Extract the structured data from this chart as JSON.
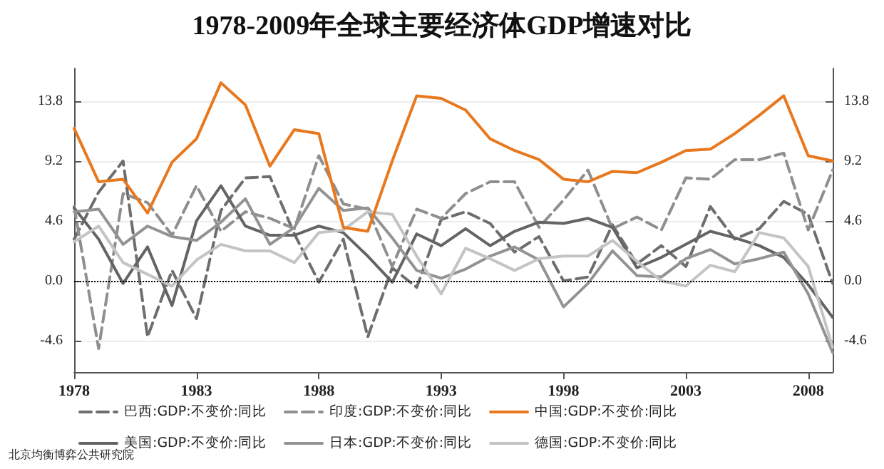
{
  "chart_data": {
    "type": "line",
    "title": "1978-2009年全球主要经济体GDP增速对比",
    "x": [
      1978,
      1979,
      1980,
      1981,
      1982,
      1983,
      1984,
      1985,
      1986,
      1987,
      1988,
      1989,
      1990,
      1991,
      1992,
      1993,
      1994,
      1995,
      1996,
      1997,
      1998,
      1999,
      2000,
      2001,
      2002,
      2003,
      2004,
      2005,
      2006,
      2007,
      2008,
      2009
    ],
    "xlim": [
      1978,
      2009
    ],
    "xticks": [
      1978,
      1983,
      1988,
      1993,
      1998,
      2003,
      2008
    ],
    "ylim": [
      -7,
      16.3
    ],
    "yticks": [
      -4.6,
      {
        "value": 0,
        "label": "0.0"
      },
      4.6,
      9.2,
      13.8
    ],
    "y2lim": [
      -7,
      16.3
    ],
    "y2ticks": [
      -4.6,
      {
        "value": 0,
        "label": "0.0"
      },
      4.6,
      9.2,
      13.8
    ],
    "grid": "y",
    "legend": "bottom",
    "marker": "none",
    "ref_lines": [
      {
        "axis": "y",
        "value": 0,
        "color": "#000000",
        "line_style": "dotted"
      }
    ],
    "series": [
      {
        "name": "巴西:GDP:不变价:同比",
        "color": "#6e6e6e",
        "line_style": "dashed",
        "values": [
          3.2,
          6.8,
          9.2,
          -4.3,
          0.8,
          -2.9,
          5.4,
          7.9,
          8.0,
          3.6,
          -0.1,
          3.2,
          -4.3,
          1.0,
          -0.5,
          4.7,
          5.3,
          4.4,
          2.2,
          3.4,
          0.0,
          0.3,
          4.3,
          1.3,
          2.7,
          1.1,
          5.7,
          3.2,
          4.0,
          6.1,
          5.1,
          -0.2
        ]
      },
      {
        "name": "印度:GDP:不变价:同比",
        "color": "#8f8f8f",
        "line_style": "dashed",
        "values": [
          5.7,
          -5.2,
          6.7,
          6.0,
          3.5,
          7.3,
          3.8,
          5.3,
          4.8,
          4.0,
          9.6,
          5.9,
          5.5,
          1.1,
          5.5,
          4.8,
          6.7,
          7.6,
          7.6,
          4.1,
          6.2,
          8.5,
          4.0,
          4.9,
          3.9,
          7.9,
          7.8,
          9.3,
          9.3,
          9.8,
          3.9,
          8.5
        ]
      },
      {
        "name": "中国:GDP:不变价:同比",
        "color": "#e8781e",
        "line_style": "solid",
        "values": [
          11.7,
          7.6,
          7.8,
          5.2,
          9.1,
          10.9,
          15.2,
          13.5,
          8.8,
          11.6,
          11.3,
          4.1,
          3.8,
          9.2,
          14.2,
          14.0,
          13.1,
          10.9,
          10.0,
          9.3,
          7.8,
          7.6,
          8.4,
          8.3,
          9.1,
          10.0,
          10.1,
          11.3,
          12.7,
          14.2,
          9.6,
          9.2
        ]
      },
      {
        "name": "美国:GDP:不变价:同比",
        "color": "#646464",
        "line_style": "solid",
        "values": [
          5.6,
          3.2,
          -0.2,
          2.6,
          -1.9,
          4.6,
          7.3,
          4.2,
          3.5,
          3.5,
          4.2,
          3.7,
          1.9,
          -0.1,
          3.6,
          2.7,
          4.0,
          2.7,
          3.8,
          4.5,
          4.4,
          4.8,
          4.1,
          1.0,
          1.8,
          2.8,
          3.8,
          3.3,
          2.7,
          1.8,
          -0.3,
          -2.8
        ]
      },
      {
        "name": "日本:GDP:不变价:同比",
        "color": "#939393",
        "line_style": "solid",
        "values": [
          5.3,
          5.5,
          2.8,
          4.2,
          3.4,
          3.1,
          4.5,
          6.3,
          2.8,
          4.1,
          7.1,
          5.4,
          5.6,
          3.3,
          0.8,
          0.2,
          0.9,
          1.9,
          2.6,
          1.6,
          -2.0,
          -0.2,
          2.3,
          0.4,
          0.3,
          1.7,
          2.4,
          1.3,
          1.7,
          2.2,
          -1.0,
          -5.5
        ]
      },
      {
        "name": "德国:GDP:不变价:同比",
        "color": "#c4c4c4",
        "line_style": "solid",
        "values": [
          3.0,
          4.2,
          1.4,
          0.5,
          -0.4,
          1.6,
          2.8,
          2.3,
          2.3,
          1.4,
          3.7,
          3.9,
          5.3,
          5.1,
          1.9,
          -1.0,
          2.5,
          1.7,
          0.8,
          1.7,
          1.9,
          1.9,
          3.1,
          1.5,
          0.0,
          -0.4,
          1.2,
          0.7,
          3.7,
          3.3,
          1.1,
          -5.1
        ]
      }
    ],
    "annotations": [
      "北京均衡博弈公共研究院"
    ]
  }
}
